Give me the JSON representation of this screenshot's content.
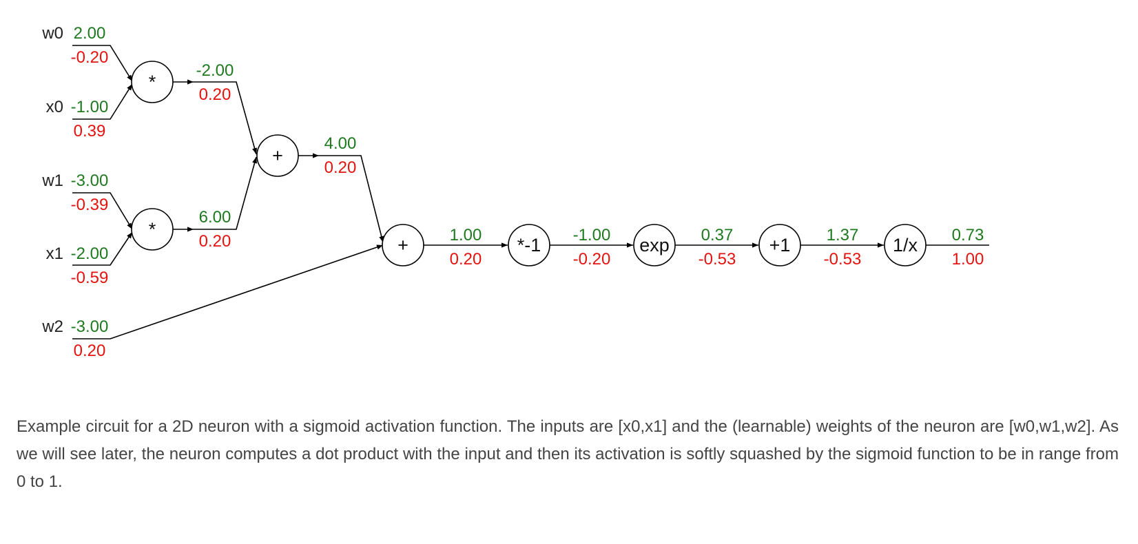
{
  "inputs": {
    "w0": {
      "name": "w0",
      "value": "2.00",
      "grad": "-0.20"
    },
    "x0": {
      "name": "x0",
      "value": "-1.00",
      "grad": "0.39"
    },
    "w1": {
      "name": "w1",
      "value": "-3.00",
      "grad": "-0.39"
    },
    "x1": {
      "name": "x1",
      "value": "-2.00",
      "grad": "-0.59"
    },
    "w2": {
      "name": "w2",
      "value": "-3.00",
      "grad": "0.20"
    }
  },
  "gates": {
    "mul0": "*",
    "mul1": "*",
    "add0": "+",
    "add1": "+",
    "neg": "*-1",
    "exp": "exp",
    "plus1": "+1",
    "inv": "1/x"
  },
  "wires": {
    "mul0_out": {
      "value": "-2.00",
      "grad": "0.20"
    },
    "mul1_out": {
      "value": "6.00",
      "grad": "0.20"
    },
    "add0_out": {
      "value": "4.00",
      "grad": "0.20"
    },
    "add1_out": {
      "value": "1.00",
      "grad": "0.20"
    },
    "neg_out": {
      "value": "-1.00",
      "grad": "-0.20"
    },
    "exp_out": {
      "value": "0.37",
      "grad": "-0.53"
    },
    "plus1_out": {
      "value": "1.37",
      "grad": "-0.53"
    },
    "inv_out": {
      "value": "0.73",
      "grad": "1.00"
    }
  },
  "colors": {
    "forward": "#1f7a1f",
    "gradient": "#e3130f"
  },
  "caption": "Example circuit for a 2D neuron with a sigmoid activation function. The inputs are [x0,x1] and the (learnable) weights of the neuron are [w0,w1,w2]. As we will see later, the neuron computes a dot product with the input and then its activation is softly squashed by the sigmoid function to be in range from 0 to 1."
}
